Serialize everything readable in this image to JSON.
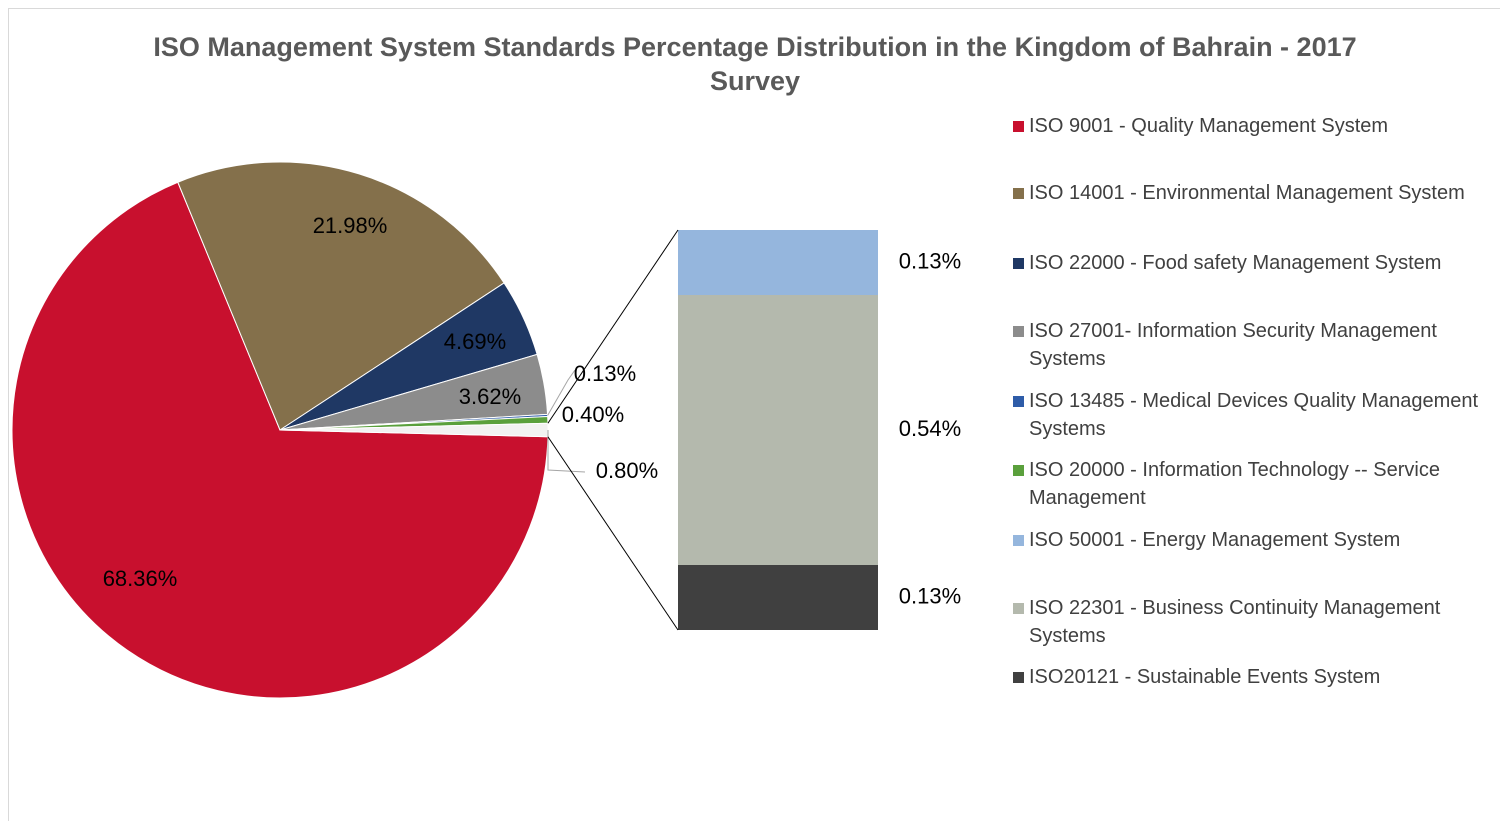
{
  "chart_data": {
    "type": "pie",
    "title": "ISO Management System Standards Percentage Distribution in the Kingdom of Bahrain - 2017 Survey",
    "categories": [
      "ISO 9001 - Quality Management System",
      "ISO 14001 - Environmental Management System",
      "ISO 22000 - Food safety Management System",
      "ISO 27001- Information Security Management Systems",
      "ISO 13485 - Medical Devices Quality Management Systems",
      "ISO 20000 - Information Technology -- Service Management",
      null
    ],
    "values": [
      68.36,
      21.98,
      4.69,
      3.62,
      0.13,
      0.4,
      0.8
    ],
    "value_labels": [
      "68.36%",
      "21.98%",
      "4.69%",
      "3.62%",
      "0.13%",
      "0.40%",
      "0.80%"
    ],
    "colors": [
      "#c8102e",
      "#84704b",
      "#1f3864",
      "#8c8c8c",
      "#2e5ca8",
      "#5aa03c",
      "#f2f2f2"
    ],
    "detail": {
      "type": "bar",
      "categories": [
        "ISO20121 - Sustainable Events System",
        "ISO 22301 - Business Continuity Management Systems",
        "ISO 50001 - Energy Management System"
      ],
      "values": [
        0.13,
        0.54,
        0.13
      ],
      "value_labels": [
        "0.13%",
        "0.54%",
        "0.13%"
      ],
      "colors": [
        "#404040",
        "#b4b9ad",
        "#95b6dd"
      ]
    }
  }
}
